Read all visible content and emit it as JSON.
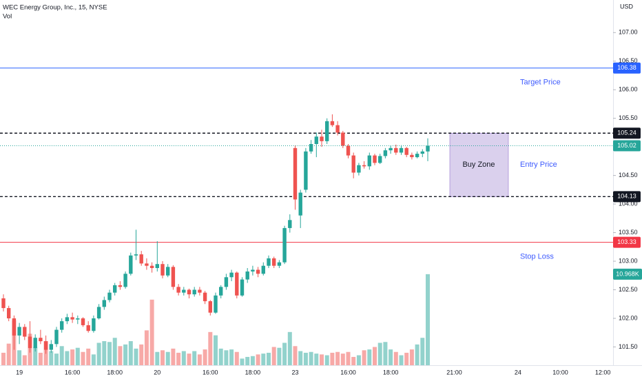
{
  "chart_data": {
    "type": "candlestick",
    "title": "WEC Energy Group, Inc., 15, NYSE",
    "volume_title": "Vol",
    "currency": "USD",
    "colors": {
      "up": "#26a69a",
      "down": "#ef5350"
    },
    "ylim": [
      101.18,
      107.57
    ],
    "yticks": [
      {
        "value": 101.5,
        "label": "101.50"
      },
      {
        "value": 102,
        "label": "102.00"
      },
      {
        "value": 102.5,
        "label": "102.50"
      },
      {
        "value": 103,
        "label": "103.00"
      },
      {
        "value": 103.5,
        "label": "103.50"
      },
      {
        "value": 104,
        "label": "104.00"
      },
      {
        "value": 104.5,
        "label": "104.50"
      },
      {
        "value": 105.5,
        "label": "105.50"
      },
      {
        "value": 106,
        "label": "106.00"
      },
      {
        "value": 106.5,
        "label": "106.50"
      },
      {
        "value": 107,
        "label": "107.00"
      }
    ],
    "categories": [
      null,
      null,
      null,
      "19",
      null,
      null,
      null,
      null,
      null,
      null,
      null,
      null,
      null,
      "16:00",
      null,
      null,
      null,
      null,
      null,
      null,
      null,
      "18:00",
      null,
      null,
      null,
      null,
      null,
      null,
      null,
      "20",
      null,
      null,
      null,
      null,
      null,
      null,
      null,
      null,
      null,
      "16:00",
      null,
      null,
      null,
      null,
      null,
      null,
      null,
      "18:00",
      null,
      null,
      null,
      null,
      null,
      null,
      null,
      "23",
      null,
      null,
      null,
      null,
      null,
      null,
      null,
      null,
      null,
      "16:00",
      null,
      null,
      null,
      null,
      null,
      null,
      null,
      "18:00",
      null,
      null,
      null,
      null,
      null,
      null,
      null,
      null,
      null,
      null,
      null,
      "21:00",
      null,
      null,
      null,
      null,
      null,
      null,
      null,
      null,
      null,
      null,
      null,
      "24",
      null,
      null,
      null,
      null,
      null,
      null,
      null,
      "10:00",
      null,
      null,
      null,
      null,
      null,
      null,
      null,
      "12:00",
      null
    ],
    "open": [
      102.35,
      102.18,
      102.0,
      101.7,
      101.85,
      101.68,
      101.48,
      101.66,
      101.6,
      101.45,
      101.55,
      101.8,
      101.95,
      102.02,
      101.98,
      102.0,
      101.88,
      101.78,
      102.0,
      102.2,
      102.32,
      102.45,
      102.58,
      102.55,
      102.78,
      103.1,
      103.12,
      102.96,
      102.92,
      102.88,
      102.95,
      102.75,
      102.9,
      102.55,
      102.45,
      102.5,
      102.42,
      102.5,
      102.45,
      102.3,
      102.1,
      102.4,
      102.55,
      102.72,
      102.8,
      102.4,
      102.68,
      102.82,
      102.85,
      102.78,
      102.92,
      103.05,
      102.92,
      102.98,
      103.58,
      104.98,
      103.8,
      104.25,
      104.92,
      105.05,
      105.18,
      105.1,
      105.45,
      105.38,
      105.25,
      105.02,
      104.85,
      104.55,
      104.68,
      104.66,
      104.85,
      104.72,
      104.84,
      104.94,
      104.98,
      104.9,
      104.98,
      104.86,
      104.82,
      104.88,
      104.92,
      null,
      null,
      null,
      null,
      null,
      null,
      null,
      null,
      null,
      null,
      null,
      null,
      null,
      null,
      null,
      null,
      null,
      null,
      null,
      null,
      null,
      null,
      null,
      null,
      null,
      null,
      null,
      null,
      null,
      null,
      null,
      null,
      null,
      null
    ],
    "high": [
      102.42,
      102.22,
      102.05,
      101.92,
      101.9,
      101.95,
      101.72,
      101.8,
      101.7,
      101.62,
      101.85,
      102.0,
      102.08,
      102.1,
      102.05,
      102.02,
      101.95,
      102.05,
      102.25,
      102.38,
      102.5,
      102.62,
      102.65,
      102.82,
      103.15,
      103.55,
      103.18,
      103.05,
      102.98,
      103.35,
      103.0,
      102.95,
      102.93,
      102.6,
      102.55,
      102.52,
      102.55,
      102.55,
      102.48,
      102.32,
      102.45,
      102.58,
      102.78,
      102.85,
      102.82,
      102.72,
      102.88,
      102.92,
      102.9,
      102.98,
      103.1,
      103.08,
      103.02,
      103.62,
      103.82,
      105.02,
      104.25,
      104.98,
      105.12,
      105.25,
      105.3,
      105.5,
      105.57,
      105.45,
      105.28,
      105.05,
      104.9,
      104.72,
      104.75,
      104.9,
      104.88,
      104.88,
      104.98,
      105.02,
      105.04,
      105.03,
      105.0,
      104.9,
      104.92,
      104.96,
      105.15,
      null,
      null,
      null,
      null,
      null,
      null,
      null,
      null,
      null,
      null,
      null,
      null,
      null,
      null,
      null,
      null,
      null,
      null,
      null,
      null,
      null,
      null,
      null,
      null,
      null,
      null,
      null,
      null,
      null,
      null,
      null,
      null,
      null,
      null
    ],
    "low": [
      102.12,
      101.95,
      101.45,
      101.55,
      101.62,
      101.4,
      101.42,
      101.55,
      101.38,
      101.4,
      101.5,
      101.75,
      101.9,
      101.92,
      101.9,
      101.85,
      101.75,
      101.75,
      101.98,
      102.15,
      102.28,
      102.4,
      102.5,
      102.52,
      102.75,
      103.02,
      102.92,
      102.85,
      102.8,
      102.82,
      102.7,
      102.72,
      102.5,
      102.4,
      102.4,
      102.35,
      102.38,
      102.4,
      102.25,
      102.05,
      102.08,
      102.35,
      102.5,
      102.65,
      102.35,
      102.38,
      102.62,
      102.75,
      102.72,
      102.75,
      102.88,
      102.88,
      102.88,
      102.95,
      103.5,
      103.9,
      103.58,
      104.2,
      104.88,
      104.82,
      105.0,
      105.05,
      105.35,
      105.2,
      104.98,
      104.8,
      104.45,
      104.5,
      104.62,
      104.6,
      104.68,
      104.7,
      104.8,
      104.88,
      104.86,
      104.86,
      104.82,
      104.78,
      104.8,
      104.82,
      104.75,
      null,
      null,
      null,
      null,
      null,
      null,
      null,
      null,
      null,
      null,
      null,
      null,
      null,
      null,
      null,
      null,
      null,
      null,
      null,
      null,
      null,
      null,
      null,
      null,
      null,
      null,
      null,
      null,
      null,
      null,
      null,
      null,
      null,
      null
    ],
    "close": [
      102.18,
      102.0,
      101.7,
      101.85,
      101.68,
      101.48,
      101.66,
      101.6,
      101.45,
      101.55,
      101.8,
      101.95,
      102.02,
      101.98,
      102.0,
      101.88,
      101.78,
      102.0,
      102.2,
      102.32,
      102.45,
      102.58,
      102.55,
      102.78,
      103.1,
      103.12,
      102.96,
      102.92,
      102.88,
      102.95,
      102.75,
      102.9,
      102.55,
      102.45,
      102.5,
      102.42,
      102.5,
      102.45,
      102.3,
      102.1,
      102.4,
      102.55,
      102.72,
      102.8,
      102.4,
      102.68,
      102.82,
      102.85,
      102.78,
      102.92,
      103.05,
      102.92,
      102.98,
      103.58,
      103.72,
      104.08,
      104.2,
      104.92,
      105.05,
      105.18,
      105.1,
      105.45,
      105.38,
      105.25,
      105.02,
      104.85,
      104.55,
      104.68,
      104.66,
      104.85,
      104.72,
      104.84,
      104.94,
      104.98,
      104.9,
      104.98,
      104.86,
      104.82,
      104.88,
      104.92,
      105.02,
      null,
      null,
      null,
      null,
      null,
      null,
      null,
      null,
      null,
      null,
      null,
      null,
      null,
      null,
      null,
      null,
      null,
      null,
      null,
      null,
      null,
      null,
      null,
      null,
      null,
      null,
      null,
      null,
      null,
      null,
      null,
      null,
      null,
      null
    ],
    "volume": {
      "ylim": [
        0,
        44000
      ],
      "last_label": "10.968K",
      "values": [
        1500,
        2600,
        5400,
        1800,
        1200,
        3800,
        2200,
        1500,
        2900,
        1700,
        1400,
        2300,
        1700,
        1900,
        2100,
        1600,
        2000,
        1300,
        2700,
        2900,
        2800,
        3300,
        2300,
        2500,
        2900,
        2000,
        2500,
        4200,
        7900,
        1600,
        1800,
        1600,
        2000,
        1500,
        1700,
        1400,
        1700,
        1300,
        1900,
        4000,
        3600,
        2000,
        1800,
        1900,
        1600,
        800,
        1000,
        1100,
        1300,
        1400,
        1500,
        2200,
        2100,
        2700,
        4000,
        2300,
        1700,
        1500,
        1600,
        1400,
        1300,
        1200,
        1500,
        1600,
        1400,
        1600,
        1000,
        1200,
        1800,
        1900,
        2200,
        2700,
        2800,
        1900,
        1600,
        1200,
        1500,
        1900,
        2500,
        3300,
        10968,
        null,
        null,
        null,
        null,
        null,
        null,
        null,
        null,
        null,
        null,
        null,
        null,
        null,
        null,
        null,
        null,
        null,
        null,
        null,
        null,
        null,
        null,
        null,
        null,
        null,
        null,
        null,
        null,
        null,
        null,
        null,
        null,
        null,
        null
      ]
    },
    "levels": [
      {
        "value": 106.38,
        "color": "#2962ff",
        "style": "solid",
        "text": "Target Price"
      },
      {
        "value": 105.24,
        "color": "#131722",
        "style": "dashed"
      },
      {
        "value": 104.13,
        "color": "#131722",
        "style": "dashed"
      },
      {
        "value": 103.33,
        "color": "#f23645",
        "style": "solid",
        "text": "Stop Loss"
      }
    ],
    "zone": {
      "label": "Buy Zone",
      "text": "Entry Price",
      "color": "#d1c4e9"
    }
  }
}
